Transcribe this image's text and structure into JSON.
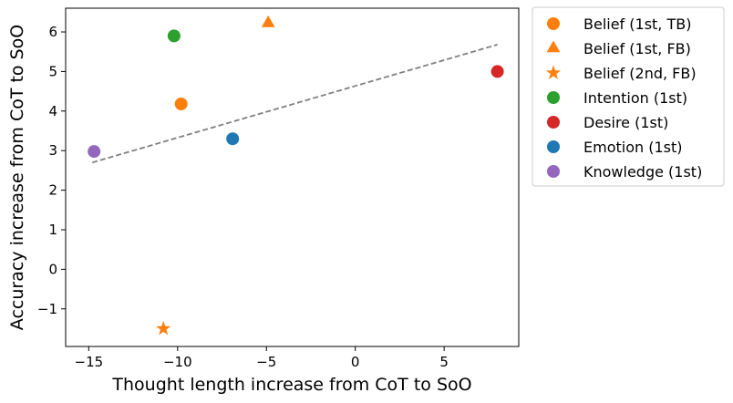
{
  "chart_data": {
    "type": "scatter",
    "title": "",
    "xlabel": "Thought length increase from CoT to SoO",
    "ylabel": "Accuracy increase from CoT to SoO",
    "xlim": [
      -16.3,
      9.2
    ],
    "ylim": [
      -1.95,
      6.6
    ],
    "xticks": [
      -15,
      -10,
      -5,
      0,
      5
    ],
    "yticks": [
      -1,
      0,
      1,
      2,
      3,
      4,
      5,
      6
    ],
    "xtick_labels": [
      "−15",
      "−10",
      "−5",
      "0",
      "5"
    ],
    "ytick_labels": [
      "−1",
      "0",
      "1",
      "2",
      "3",
      "4",
      "5",
      "6"
    ],
    "legend_position": "outside-right-top",
    "series": [
      {
        "name": "Belief (1st, TB)",
        "marker": "circle",
        "color": "#ff7f0e",
        "x": -9.8,
        "y": 4.18
      },
      {
        "name": "Belief (1st, FB)",
        "marker": "triangle",
        "color": "#ff7f0e",
        "x": -4.9,
        "y": 6.22
      },
      {
        "name": "Belief (2nd, FB)",
        "marker": "star",
        "color": "#ff7f0e",
        "x": -10.8,
        "y": -1.5
      },
      {
        "name": "Intention (1st)",
        "marker": "circle",
        "color": "#2ca02c",
        "x": -10.2,
        "y": 5.9
      },
      {
        "name": "Desire (1st)",
        "marker": "circle",
        "color": "#d62728",
        "x": 8.0,
        "y": 5.0
      },
      {
        "name": "Emotion (1st)",
        "marker": "circle",
        "color": "#1f77b4",
        "x": -6.9,
        "y": 3.3
      },
      {
        "name": "Knowledge (1st)",
        "marker": "circle",
        "color": "#9467bd",
        "x": -14.7,
        "y": 2.98
      }
    ],
    "trendline": {
      "style": "dashed",
      "color": "#808080",
      "x": [
        -14.8,
        8.0
      ],
      "y": [
        2.7,
        5.68
      ]
    }
  }
}
